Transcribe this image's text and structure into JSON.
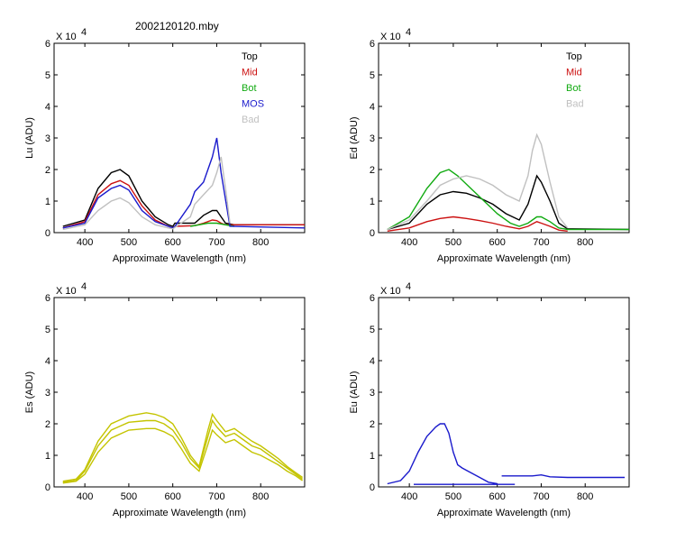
{
  "figure": {
    "title": "2002120120.mby"
  },
  "colors": {
    "Top": "#000000",
    "Mid": "#cc1111",
    "Bot": "#11aa11",
    "MOS": "#1a1acc",
    "Bad": "#c0c0c0",
    "Es": "#c4c400"
  },
  "chart_data": [
    {
      "type": "line",
      "id": "lu",
      "ylabel": "Lu (ADU)",
      "xlabel": "Approximate Wavelength (nm)",
      "y_multiplier": "X 10",
      "y_exponent": "4",
      "xlim": [
        330,
        900
      ],
      "ylim": [
        0,
        6
      ],
      "xticks": [
        400,
        500,
        600,
        700,
        800
      ],
      "yticks": [
        0,
        1,
        2,
        3,
        4,
        5,
        6
      ],
      "legend": {
        "placement": "top-right",
        "entries": [
          "Top",
          "Mid",
          "Bot",
          "MOS",
          "Bad"
        ]
      },
      "series": [
        {
          "name": "Top",
          "color": "#000000",
          "x": [
            350,
            400,
            430,
            460,
            480,
            500,
            530,
            560,
            590,
            600,
            605,
            650,
            670,
            690,
            700,
            710,
            720,
            740,
            900
          ],
          "y": [
            0.2,
            0.4,
            1.4,
            1.9,
            2.0,
            1.8,
            1.0,
            0.5,
            0.25,
            0.2,
            0.3,
            0.3,
            0.55,
            0.7,
            0.7,
            0.5,
            0.3,
            0.25,
            0.25
          ]
        },
        {
          "name": "Mid",
          "color": "#cc1111",
          "x": [
            350,
            400,
            430,
            460,
            480,
            500,
            530,
            560,
            590,
            600,
            605,
            650,
            670,
            690,
            700,
            710,
            720,
            740,
            900
          ],
          "y": [
            0.15,
            0.35,
            1.2,
            1.55,
            1.65,
            1.5,
            0.85,
            0.4,
            0.2,
            0.15,
            0.2,
            0.22,
            0.3,
            0.4,
            0.38,
            0.3,
            0.25,
            0.25,
            0.25
          ]
        },
        {
          "name": "Bot",
          "color": "#11aa11",
          "x": [
            640,
            660,
            680,
            700,
            720,
            740
          ],
          "y": [
            0.2,
            0.25,
            0.3,
            0.3,
            0.25,
            0.2
          ]
        },
        {
          "name": "MOS",
          "color": "#1a1acc",
          "x": [
            350,
            400,
            430,
            460,
            480,
            500,
            530,
            560,
            590,
            600,
            605,
            640,
            650,
            670,
            690,
            700,
            710,
            730,
            900
          ],
          "y": [
            0.15,
            0.3,
            1.1,
            1.4,
            1.5,
            1.35,
            0.7,
            0.35,
            0.2,
            0.15,
            0.2,
            0.9,
            1.3,
            1.6,
            2.4,
            3.0,
            1.9,
            0.2,
            0.15
          ]
        },
        {
          "name": "Bad",
          "color": "#c0c0c0",
          "x": [
            350,
            400,
            430,
            460,
            480,
            500,
            530,
            560,
            590,
            600,
            640,
            650,
            670,
            690,
            700,
            710,
            720,
            730
          ],
          "y": [
            0.1,
            0.25,
            0.7,
            1.0,
            1.1,
            0.95,
            0.5,
            0.25,
            0.15,
            0.12,
            0.5,
            0.9,
            1.2,
            1.5,
            1.9,
            2.4,
            1.4,
            0.3
          ]
        }
      ]
    },
    {
      "type": "line",
      "id": "ed",
      "ylabel": "Ed (ADU)",
      "xlabel": "Approximate Wavelength (nm)",
      "y_multiplier": "X 10",
      "y_exponent": "4",
      "xlim": [
        330,
        900
      ],
      "ylim": [
        0,
        6
      ],
      "xticks": [
        400,
        500,
        600,
        700,
        800
      ],
      "yticks": [
        0,
        1,
        2,
        3,
        4,
        5,
        6
      ],
      "legend": {
        "placement": "top-right",
        "entries": [
          "Top",
          "Mid",
          "Bot",
          "Bad"
        ]
      },
      "series": [
        {
          "name": "Top",
          "color": "#000000",
          "x": [
            350,
            400,
            440,
            470,
            500,
            530,
            560,
            590,
            620,
            650,
            670,
            690,
            700,
            720,
            740,
            760,
            900
          ],
          "y": [
            0.1,
            0.3,
            0.9,
            1.2,
            1.3,
            1.25,
            1.1,
            0.9,
            0.6,
            0.4,
            0.9,
            1.8,
            1.6,
            1.0,
            0.3,
            0.12,
            0.1
          ]
        },
        {
          "name": "Mid",
          "color": "#cc1111",
          "x": [
            350,
            400,
            440,
            470,
            500,
            530,
            560,
            590,
            620,
            650,
            670,
            690,
            700,
            720,
            740,
            760
          ],
          "y": [
            0.05,
            0.15,
            0.35,
            0.45,
            0.5,
            0.45,
            0.38,
            0.3,
            0.2,
            0.12,
            0.2,
            0.35,
            0.3,
            0.2,
            0.08,
            0.05
          ]
        },
        {
          "name": "Bot",
          "color": "#11aa11",
          "x": [
            350,
            400,
            440,
            470,
            490,
            510,
            540,
            570,
            600,
            630,
            650,
            670,
            690,
            700,
            720,
            740,
            760,
            900
          ],
          "y": [
            0.1,
            0.5,
            1.4,
            1.9,
            2.0,
            1.8,
            1.4,
            1.0,
            0.6,
            0.3,
            0.2,
            0.3,
            0.5,
            0.5,
            0.35,
            0.15,
            0.1,
            0.1
          ]
        },
        {
          "name": "Bad",
          "color": "#c0c0c0",
          "x": [
            350,
            400,
            440,
            470,
            500,
            530,
            560,
            590,
            620,
            650,
            670,
            680,
            690,
            700,
            720,
            740,
            760
          ],
          "y": [
            0.1,
            0.4,
            1.0,
            1.5,
            1.7,
            1.8,
            1.7,
            1.5,
            1.2,
            1.0,
            1.8,
            2.6,
            3.1,
            2.8,
            1.6,
            0.5,
            0.15
          ]
        }
      ]
    },
    {
      "type": "line",
      "id": "es",
      "ylabel": "Es (ADU)",
      "xlabel": "Approximate Wavelength (nm)",
      "y_multiplier": "X 10",
      "y_exponent": "4",
      "xlim": [
        330,
        900
      ],
      "ylim": [
        0,
        6
      ],
      "xticks": [
        400,
        500,
        600,
        700,
        800
      ],
      "yticks": [
        0,
        1,
        2,
        3,
        4,
        5,
        6
      ],
      "series": [
        {
          "name": "",
          "color": "#c4c400",
          "x": [
            350,
            380,
            400,
            430,
            460,
            500,
            540,
            560,
            580,
            600,
            620,
            640,
            660,
            680,
            690,
            700,
            720,
            740,
            760,
            780,
            800,
            820,
            840,
            860,
            880,
            895
          ],
          "y": [
            0.15,
            0.2,
            0.5,
            1.3,
            1.8,
            2.05,
            2.1,
            2.1,
            2.0,
            1.8,
            1.4,
            0.9,
            0.6,
            1.6,
            2.1,
            1.9,
            1.6,
            1.7,
            1.5,
            1.3,
            1.2,
            1.0,
            0.8,
            0.6,
            0.4,
            0.25
          ]
        },
        {
          "name": "",
          "color": "#c4c400",
          "x": [
            350,
            380,
            400,
            430,
            460,
            500,
            540,
            560,
            580,
            600,
            620,
            640,
            660,
            680,
            690,
            700,
            720,
            740,
            760,
            780,
            800,
            820,
            840,
            860,
            880,
            895
          ],
          "y": [
            0.12,
            0.18,
            0.4,
            1.1,
            1.55,
            1.8,
            1.85,
            1.85,
            1.75,
            1.6,
            1.2,
            0.75,
            0.5,
            1.35,
            1.8,
            1.65,
            1.4,
            1.5,
            1.3,
            1.1,
            1.0,
            0.85,
            0.7,
            0.5,
            0.35,
            0.2
          ]
        },
        {
          "name": "",
          "color": "#c4c400",
          "x": [
            350,
            380,
            400,
            430,
            460,
            500,
            540,
            560,
            580,
            600,
            620,
            640,
            660,
            680,
            690,
            700,
            720,
            740,
            760,
            780,
            800,
            820,
            840,
            860,
            880,
            895
          ],
          "y": [
            0.18,
            0.25,
            0.55,
            1.45,
            2.0,
            2.25,
            2.35,
            2.3,
            2.2,
            2.0,
            1.55,
            1.0,
            0.65,
            1.8,
            2.3,
            2.1,
            1.75,
            1.85,
            1.65,
            1.45,
            1.3,
            1.1,
            0.9,
            0.65,
            0.45,
            0.3
          ]
        }
      ]
    },
    {
      "type": "line",
      "id": "eu",
      "ylabel": "Eu (ADU)",
      "xlabel": "Approximate Wavelength (nm)",
      "y_multiplier": "X 10",
      "y_exponent": "4",
      "xlim": [
        330,
        900
      ],
      "ylim": [
        0,
        6
      ],
      "xticks": [
        400,
        500,
        600,
        700,
        800
      ],
      "yticks": [
        0,
        1,
        2,
        3,
        4,
        5,
        6
      ],
      "series": [
        {
          "name": "",
          "color": "#1a1acc",
          "x": [
            350,
            380,
            400,
            420,
            440,
            460,
            470,
            480,
            490,
            500,
            510,
            520,
            540,
            560,
            580,
            600
          ],
          "y": [
            0.1,
            0.2,
            0.5,
            1.1,
            1.6,
            1.9,
            2.0,
            2.0,
            1.7,
            1.1,
            0.7,
            0.6,
            0.45,
            0.3,
            0.15,
            0.1
          ]
        },
        {
          "name": "",
          "color": "#1a1acc",
          "x": [
            410,
            640
          ],
          "y": [
            0.08,
            0.08
          ]
        },
        {
          "name": "",
          "color": "#1a1acc",
          "x": [
            610,
            680,
            700,
            720,
            760,
            800,
            850,
            890
          ],
          "y": [
            0.35,
            0.35,
            0.38,
            0.32,
            0.3,
            0.3,
            0.3,
            0.3
          ]
        }
      ]
    }
  ]
}
